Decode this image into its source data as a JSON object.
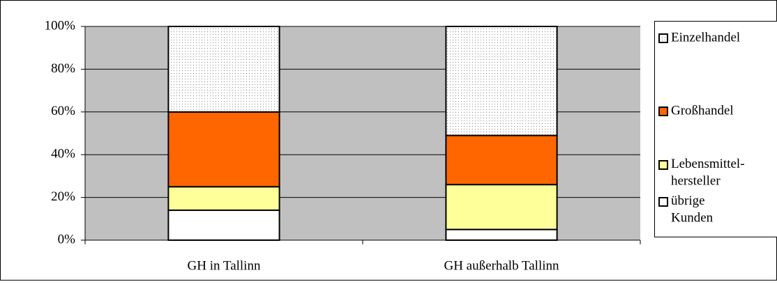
{
  "chart_data": {
    "type": "stacked-bar",
    "categories": [
      "GH in Tallinn",
      "GH außerhalb Tallinn"
    ],
    "series": [
      {
        "name": "übrige\nKunden",
        "color": "#ffffff",
        "values": [
          14,
          5
        ]
      },
      {
        "name": "Lebensmittel-\nhersteller",
        "color": "#ffff99",
        "values": [
          11,
          21
        ]
      },
      {
        "name": "Großhandel",
        "color": "#ff6600",
        "values": [
          35,
          23
        ]
      },
      {
        "name": "Einzelhandel",
        "color": "#ffffff",
        "pattern": "dots",
        "values": [
          40,
          51
        ]
      }
    ],
    "ylim": [
      0,
      100
    ],
    "yticks": [
      {
        "value": 0,
        "label": "0%"
      },
      {
        "value": 20,
        "label": "20%"
      },
      {
        "value": 40,
        "label": "40%"
      },
      {
        "value": 60,
        "label": "60%"
      },
      {
        "value": 80,
        "label": "80%"
      },
      {
        "value": 100,
        "label": "100%"
      }
    ],
    "grid": true,
    "legend": "right"
  }
}
